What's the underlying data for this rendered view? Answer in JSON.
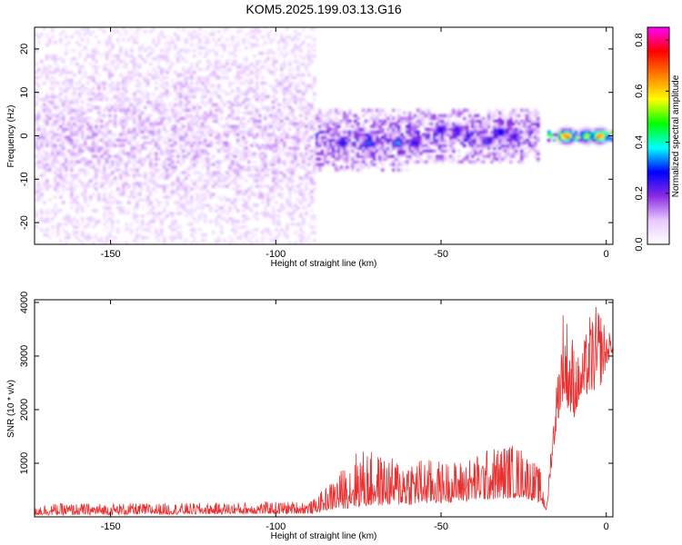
{
  "chart_data": [
    {
      "id": "spectrogram",
      "type": "heatmap",
      "title": "KOM5.2025.199.03.13.G16",
      "xlabel": "Height of straight line (km)",
      "ylabel": "Frequency (Hz)",
      "xlim": [
        -173,
        2
      ],
      "ylim": [
        -25,
        25
      ],
      "xticks": [
        -150,
        -100,
        -50,
        0
      ],
      "yticks": [
        -20,
        -10,
        0,
        10,
        20
      ],
      "colorbar": {
        "label": "Normalized spectral amplitude",
        "range": [
          0,
          0.85
        ],
        "ticks": [
          0.0,
          0.2,
          0.4,
          0.6,
          0.8
        ],
        "colors": [
          "#ffffff",
          "#e8c8ff",
          "#8a2be2",
          "#0000ff",
          "#00ffff",
          "#00ff00",
          "#ffff00",
          "#ff8000",
          "#ff0000",
          "#ff00ff"
        ]
      },
      "bands": [
        {
          "x": [
            -173,
            -88
          ],
          "center": 0,
          "halfwidth": 25,
          "level": 0.12,
          "density": 0.55
        },
        {
          "x": [
            -88,
            -60
          ],
          "center": -1,
          "halfwidth": 7,
          "level": 0.22,
          "density": 0.85
        },
        {
          "x": [
            -60,
            -20
          ],
          "center": 0,
          "halfwidth": 6,
          "level": 0.22,
          "density": 0.85
        },
        {
          "x": [
            -18,
            2
          ],
          "center": 0,
          "halfwidth": 1.5,
          "level": 0.55,
          "density": 1.0
        }
      ],
      "hotspots": [
        {
          "x": -80,
          "y": -1.5,
          "value": 0.3
        },
        {
          "x": -72,
          "y": -1.5,
          "value": 0.32
        },
        {
          "x": -63,
          "y": -1.5,
          "value": 0.33
        },
        {
          "x": -58,
          "y": -1.5,
          "value": 0.3
        },
        {
          "x": -50,
          "y": 1.5,
          "value": 0.32
        },
        {
          "x": -45,
          "y": 1.5,
          "value": 0.3
        },
        {
          "x": -36,
          "y": -1,
          "value": 0.3
        },
        {
          "x": -32,
          "y": 1,
          "value": 0.32
        },
        {
          "x": -28,
          "y": 0,
          "value": 0.28
        },
        {
          "x": -12,
          "y": 0,
          "value": 0.8
        },
        {
          "x": -6,
          "y": 0,
          "value": 0.55
        },
        {
          "x": -2,
          "y": 0,
          "value": 0.75
        }
      ]
    },
    {
      "id": "snr",
      "type": "line",
      "xlabel": "Height of straight line (km)",
      "ylabel": "SNR (10 * v/v)",
      "xlim": [
        -173,
        2
      ],
      "ylim": [
        0,
        4050
      ],
      "xticks": [
        -150,
        -100,
        -50,
        0
      ],
      "yticks": [
        1000,
        2000,
        3000,
        4000
      ],
      "color": "#e83030",
      "envelope": {
        "x": [
          -173,
          -120,
          -89,
          -85,
          -80,
          -75,
          -70,
          -65,
          -60,
          -55,
          -50,
          -45,
          -40,
          -35,
          -30,
          -25,
          -20,
          -18,
          -17,
          -15,
          -13,
          -10,
          -8,
          -5,
          -2,
          0,
          2
        ],
        "base": [
          30,
          50,
          60,
          120,
          150,
          180,
          200,
          220,
          220,
          240,
          260,
          280,
          300,
          320,
          340,
          360,
          250,
          100,
          700,
          1700,
          2200,
          1800,
          2200,
          2300,
          2400,
          2800,
          3100
        ],
        "peak": [
          250,
          260,
          300,
          550,
          900,
          1300,
          1200,
          1100,
          1150,
          1100,
          1050,
          1050,
          1150,
          1300,
          1400,
          1300,
          900,
          200,
          1200,
          2600,
          4000,
          3400,
          2900,
          3800,
          4000,
          3500,
          3400
        ]
      }
    }
  ]
}
